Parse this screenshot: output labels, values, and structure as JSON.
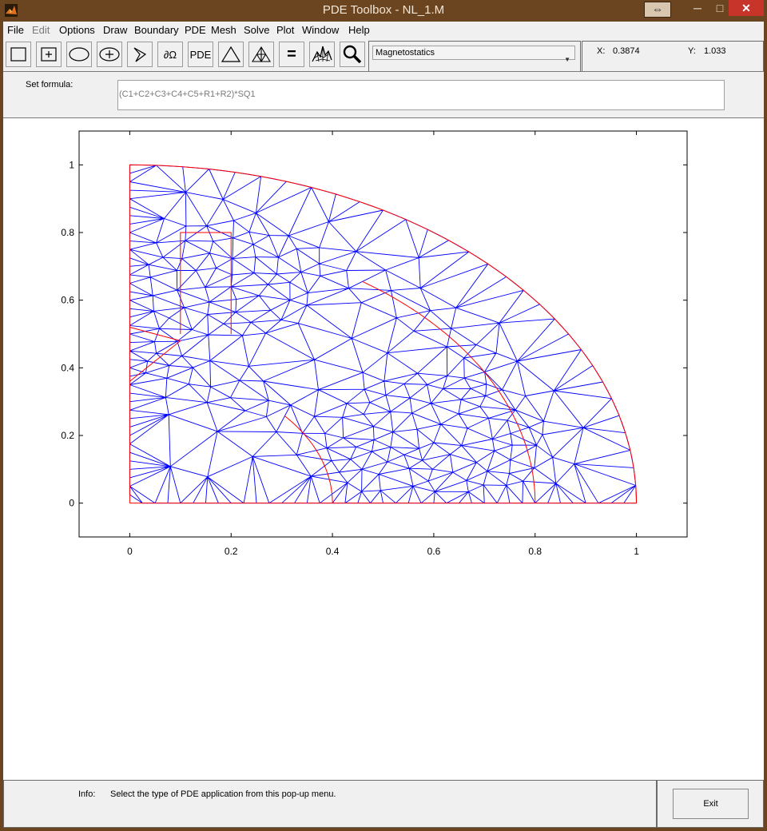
{
  "window": {
    "title": "PDE Toolbox - NL_1.M",
    "restore_glyph": "⇔",
    "minimize_glyph": "─",
    "maximize_glyph": "□",
    "close_glyph": "✕"
  },
  "menu": {
    "items": [
      "File",
      "Edit",
      "Options",
      "Draw",
      "Boundary",
      "PDE",
      "Mesh",
      "Solve",
      "Plot",
      "Window",
      "Help"
    ],
    "disabled": [
      "Edit"
    ]
  },
  "toolbar": {
    "tools": [
      {
        "name": "rectangle-tool",
        "icon": "rectangle-icon"
      },
      {
        "name": "centered-rectangle-tool",
        "icon": "centered-rectangle-icon"
      },
      {
        "name": "ellipse-tool",
        "icon": "ellipse-icon"
      },
      {
        "name": "centered-ellipse-tool",
        "icon": "centered-ellipse-icon"
      },
      {
        "name": "polygon-tool",
        "icon": "polygon-icon"
      },
      {
        "name": "boundary-mode-button",
        "label": "∂Ω"
      },
      {
        "name": "pde-mode-button",
        "label": "PDE"
      },
      {
        "name": "init-mesh-button",
        "icon": "triangle-icon"
      },
      {
        "name": "refine-mesh-button",
        "icon": "refined-triangle-icon"
      },
      {
        "name": "solve-button",
        "label": "="
      },
      {
        "name": "plot-button",
        "icon": "surface-plot-icon"
      },
      {
        "name": "zoom-button",
        "icon": "magnifier-icon"
      }
    ],
    "application_select": "Magnetostatics",
    "x_label": "X:",
    "x_value": "0.3874",
    "y_label": "Y:",
    "y_value": "1.033"
  },
  "formula": {
    "label": "Set formula:",
    "value": "(C1+C2+C3+C4+C5+R1+R2)*SQ1"
  },
  "plot": {
    "x_ticks": [
      "0",
      "0.2",
      "0.4",
      "0.6",
      "0.8",
      "1"
    ],
    "y_ticks": [
      "0",
      "0.2",
      "0.4",
      "0.6",
      "0.8",
      "1"
    ],
    "xlim": [
      -0.1,
      1.1
    ],
    "ylim": [
      -0.1,
      1.1
    ],
    "boundary_color": "#ff0000",
    "mesh_color": "#0000ff"
  },
  "info": {
    "label": "Info:",
    "text": "Select the type of PDE application from this pop-up menu."
  },
  "exit_label": "Exit"
}
